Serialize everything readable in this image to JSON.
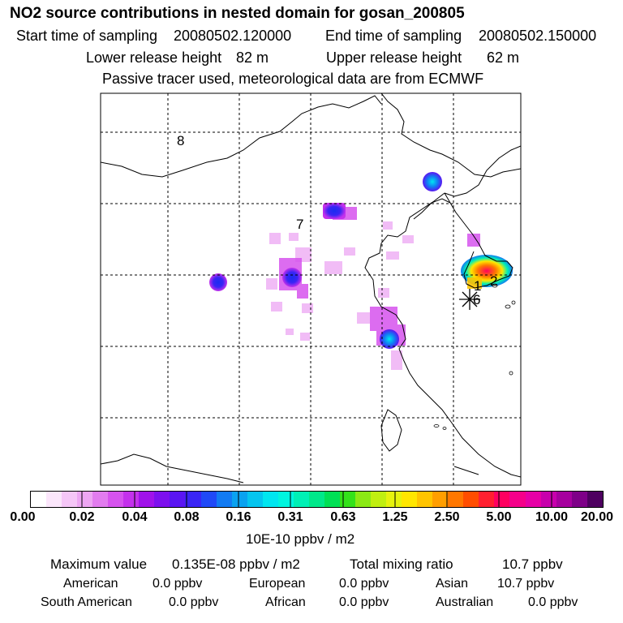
{
  "title": "NO2 source contributions in nested domain for gosan_200805",
  "header": {
    "start_label": "Start time of sampling",
    "start_value": "20080502.120000",
    "end_label": "End time of sampling",
    "end_value": "20080502.150000",
    "lower_label": "Lower release height",
    "lower_value": "82 m",
    "upper_label": "Upper release height",
    "upper_value": "62 m",
    "note": "Passive tracer used, meteorological data are from ECMWF"
  },
  "map": {
    "region_labels": [
      "8",
      "7",
      "2",
      "1",
      "6"
    ]
  },
  "colorbar": {
    "ticks": [
      "0.00",
      "0.02",
      "0.04",
      "0.08",
      "0.16",
      "0.31",
      "0.63",
      "1.25",
      "2.50",
      "5.00",
      "10.00",
      "20.00"
    ],
    "units": "10E-10 ppbv / m2",
    "colors": [
      "#ffffff",
      "#fbe6fb",
      "#f5c6f7",
      "#eda6f3",
      "#e27cef",
      "#d653ee",
      "#c431ec",
      "#a012ea",
      "#7d10ee",
      "#5a15f2",
      "#3a25f5",
      "#2049f7",
      "#127bf3",
      "#0aa2f0",
      "#05c5ef",
      "#00e6f0",
      "#00f5df",
      "#00f0b5",
      "#00e88a",
      "#00e055",
      "#34e21a",
      "#8be914",
      "#c0ef10",
      "#e6f20d",
      "#ffe600",
      "#ffc400",
      "#ff9e00",
      "#ff7700",
      "#ff4d00",
      "#ff2030",
      "#ff0060",
      "#f5008a",
      "#e600a6",
      "#c800ac",
      "#a6009e",
      "#7e0088",
      "#4e0060"
    ]
  },
  "summary": {
    "max_label": "Maximum value",
    "max_value": "0.135E-08 ppbv / m2",
    "total_label": "Total mixing ratio",
    "total_value": "10.7 ppbv",
    "regions": [
      {
        "name": "American",
        "value": "0.0 ppbv"
      },
      {
        "name": "European",
        "value": "0.0 ppbv"
      },
      {
        "name": "Asian",
        "value": "10.7 ppbv"
      },
      {
        "name": "South American",
        "value": "0.0 ppbv"
      },
      {
        "name": "African",
        "value": "0.0 ppbv"
      },
      {
        "name": "Australian",
        "value": "0.0 ppbv"
      }
    ]
  }
}
